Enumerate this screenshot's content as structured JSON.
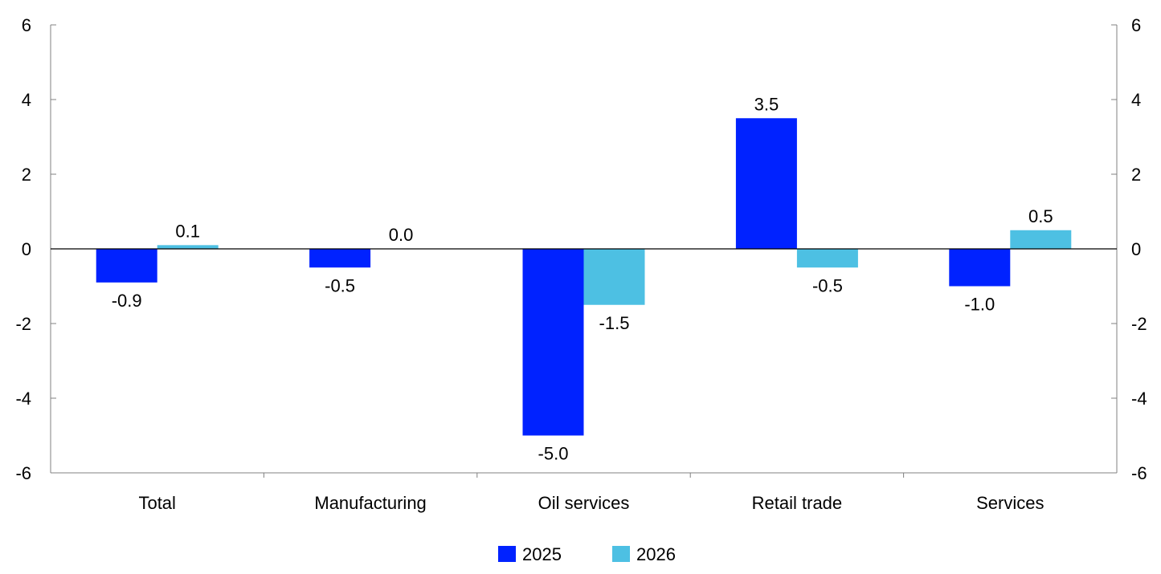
{
  "chart_data": {
    "type": "bar",
    "categories": [
      "Total",
      "Manufacturing",
      "Oil services",
      "Retail trade",
      "Services"
    ],
    "series": [
      {
        "name": "2025",
        "values": [
          -0.9,
          -0.5,
          -5.0,
          3.5,
          -1.0
        ],
        "labels": [
          "-0.9",
          "-0.5",
          "-5.0",
          "3.5",
          "-1.0"
        ],
        "color": "#0022FF"
      },
      {
        "name": "2026",
        "values": [
          0.1,
          0.0,
          -1.5,
          -0.5,
          0.5
        ],
        "labels": [
          "0.1",
          "0.0",
          "-1.5",
          "-0.5",
          "0.5"
        ],
        "color": "#4DC0E3"
      }
    ],
    "ylim": [
      -6,
      6
    ],
    "yticks": [
      -6,
      -4,
      -2,
      0,
      2,
      4,
      6
    ],
    "secondary_axis": true,
    "grid": false,
    "legend_position": "bottom-center",
    "title": "",
    "xlabel": "",
    "ylabel": ""
  }
}
